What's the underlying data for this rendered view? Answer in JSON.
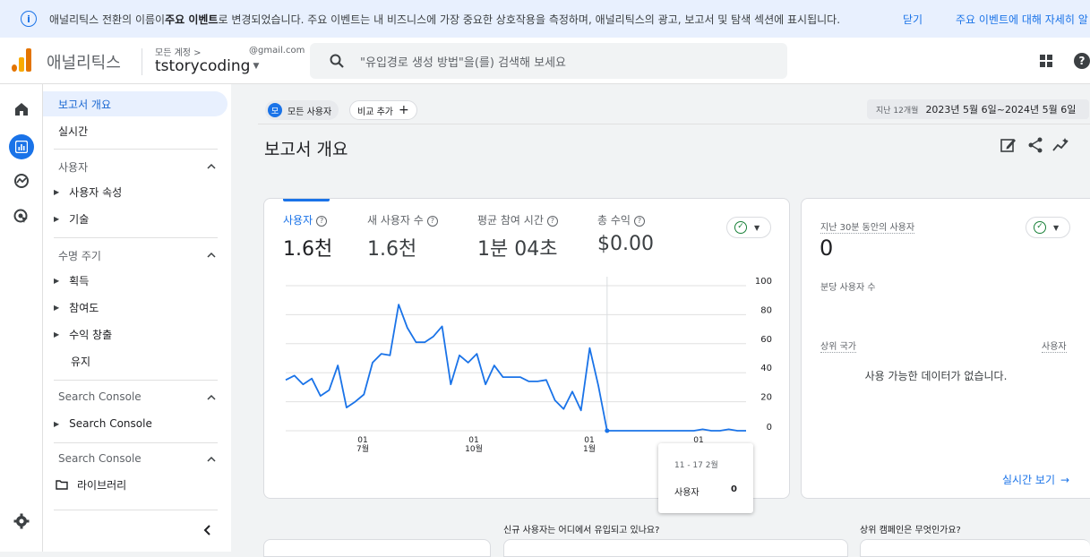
{
  "banner": {
    "text_before": "애널리틱스 전환의 이름이 ",
    "bold": "주요 이벤트",
    "text_after": "로 변경되었습니다. 주요 이벤트는 내 비즈니스에 가장 중요한 상호작용을 측정하며, 애널리틱스의 광고, 보고서 및 탐색 섹션에 표시됩니다.",
    "close": "닫기",
    "learn_more": "주요 이벤트에 대해 자세히 알"
  },
  "header": {
    "app_name": "애널리틱스",
    "account_label": "모든 계정 >",
    "account_email": "@gmail.com",
    "property": "tstorycoding",
    "search_placeholder": "\"유입경로 생성 방법\"을(를) 검색해 보세요"
  },
  "nav": {
    "overview": "보고서 개요",
    "realtime": "실시간",
    "users_section": "사용자",
    "user_attr": "사용자 속성",
    "tech": "기술",
    "lifecycle_section": "수명 주기",
    "acquisition": "획득",
    "engagement": "참여도",
    "monetization": "수익 창출",
    "retention": "유지",
    "sc_section1": "Search Console",
    "sc_item": "Search Console",
    "sc_section2": "Search Console",
    "library": "라이브러리"
  },
  "filters": {
    "all_users_avatar": "모",
    "all_users": "모든 사용자",
    "add_compare": "비교 추가"
  },
  "date_range": {
    "label": "지난 12개월",
    "value": "2023년 5월 6일~2024년 5월 6일"
  },
  "page_title": "보고서 개요",
  "kpis": [
    {
      "name": "사용자",
      "value": "1.6천"
    },
    {
      "name": "새 사용자 수",
      "value": "1.6천"
    },
    {
      "name": "평균 참여 시간",
      "value": "1분 04초"
    },
    {
      "name": "총 수익",
      "value": "$0.00"
    }
  ],
  "chart_data": {
    "type": "line",
    "y_ticks": [
      "100",
      "80",
      "60",
      "40",
      "20",
      "0"
    ],
    "ylim": [
      0,
      100
    ],
    "x_ticks": [
      {
        "top": "01",
        "bottom": "7월"
      },
      {
        "top": "01",
        "bottom": "10월"
      },
      {
        "top": "01",
        "bottom": "1월"
      },
      {
        "top": "01",
        "bottom": ""
      }
    ],
    "series": [
      {
        "values": [
          35,
          38,
          32,
          36,
          24,
          28,
          45,
          16,
          20,
          25,
          47,
          53,
          52,
          87,
          71,
          61,
          61,
          65,
          72,
          32,
          52,
          47,
          53,
          32,
          45,
          37,
          37,
          37,
          34,
          34,
          35,
          21,
          15,
          27,
          14,
          57,
          31,
          0,
          0,
          0,
          0,
          0,
          0,
          0,
          0,
          0,
          0,
          0,
          1,
          0,
          0,
          1,
          0,
          0
        ]
      }
    ],
    "tooltip": {
      "date": "11 - 17 2월",
      "metric": "사용자",
      "value": "0"
    }
  },
  "realtime": {
    "title": "지난 30분 동안의 사용자",
    "value": "0",
    "per_minute": "분당 사용자 수",
    "col_country": "상위 국가",
    "col_users": "사용자",
    "empty": "사용 가능한 데이터가 없습니다.",
    "link": "실시간 보기"
  },
  "bottom": {
    "q1": "신규 사용자는 어디에서 유입되고 있나요?",
    "q2": "상위 캠페인은 무엇인가요?"
  },
  "colors": {
    "accent": "#1a73e8",
    "line": "#1a73e8"
  }
}
